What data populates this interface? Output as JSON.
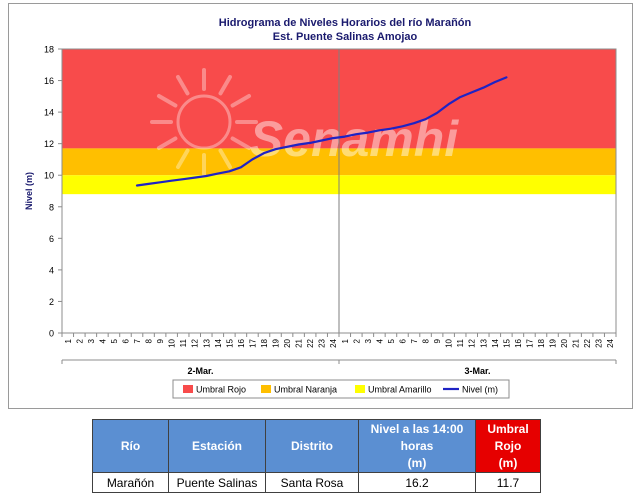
{
  "chart_data": {
    "type": "line",
    "title": "Hidrograma de Niveles Horarios del río Marañón",
    "subtitle": "Est. Puente Salinas Amojao",
    "ylabel": "Nivel (m)",
    "ylim": [
      0,
      18
    ],
    "yticks": [
      "0",
      "2",
      "4",
      "6",
      "8",
      "10",
      "12",
      "14",
      "16",
      "18"
    ],
    "x_hour_labels": [
      "1",
      "2",
      "3",
      "4",
      "5",
      "6",
      "7",
      "8",
      "9",
      "10",
      "11",
      "12",
      "13",
      "14",
      "15",
      "16",
      "17",
      "18",
      "19",
      "20",
      "21",
      "22",
      "23",
      "24",
      "1",
      "2",
      "3",
      "4",
      "5",
      "6",
      "7",
      "8",
      "9",
      "10",
      "11",
      "12",
      "13",
      "14",
      "15",
      "16",
      "17",
      "18",
      "19",
      "20",
      "21",
      "22",
      "23",
      "24"
    ],
    "day_labels": [
      "2-Mar.",
      "3-Mar."
    ],
    "watermark": "Senamhi",
    "thresholds": [
      {
        "name": "Umbral Rojo",
        "from": 11.7,
        "to": 18,
        "color": "#f84b4b"
      },
      {
        "name": "Umbral Naranja",
        "from": 10.0,
        "to": 11.7,
        "color": "#ffbf00"
      },
      {
        "name": "Umbral Amarillo",
        "from": 8.8,
        "to": 10.0,
        "color": "#ffff00"
      }
    ],
    "series": [
      {
        "name": "Nivel (m)",
        "color": "#1f23c4",
        "x": [
          7,
          8,
          9,
          10,
          11,
          12,
          13,
          14,
          15,
          16,
          17,
          18,
          19,
          20,
          21,
          22,
          23,
          24,
          25,
          26,
          27,
          28,
          29,
          30,
          31,
          32,
          33,
          34,
          35,
          36,
          37,
          38,
          39
        ],
        "y": [
          9.35,
          9.45,
          9.55,
          9.65,
          9.75,
          9.85,
          9.95,
          10.1,
          10.25,
          10.5,
          11.0,
          11.4,
          11.65,
          11.8,
          11.95,
          12.05,
          12.2,
          12.35,
          12.45,
          12.6,
          12.7,
          12.85,
          12.95,
          13.1,
          13.3,
          13.55,
          13.95,
          14.5,
          14.95,
          15.25,
          15.55,
          15.9,
          16.2
        ]
      }
    ],
    "legend_position": "bottom"
  },
  "table": {
    "headers": {
      "rio": "Río",
      "estacion": "Estación",
      "distrito": "Distrito",
      "nivel_line1": "Nivel a las 14:00",
      "nivel_line2": "horas",
      "nivel_line3": "(m)",
      "umbral_line1": "Umbral",
      "umbral_line2": "Rojo",
      "umbral_line3": "(m)"
    },
    "row": {
      "rio": "Marañón",
      "estacion": "Puente Salinas",
      "distrito": "Santa Rosa",
      "nivel": "16.2",
      "umbral_rojo": "11.7"
    }
  }
}
